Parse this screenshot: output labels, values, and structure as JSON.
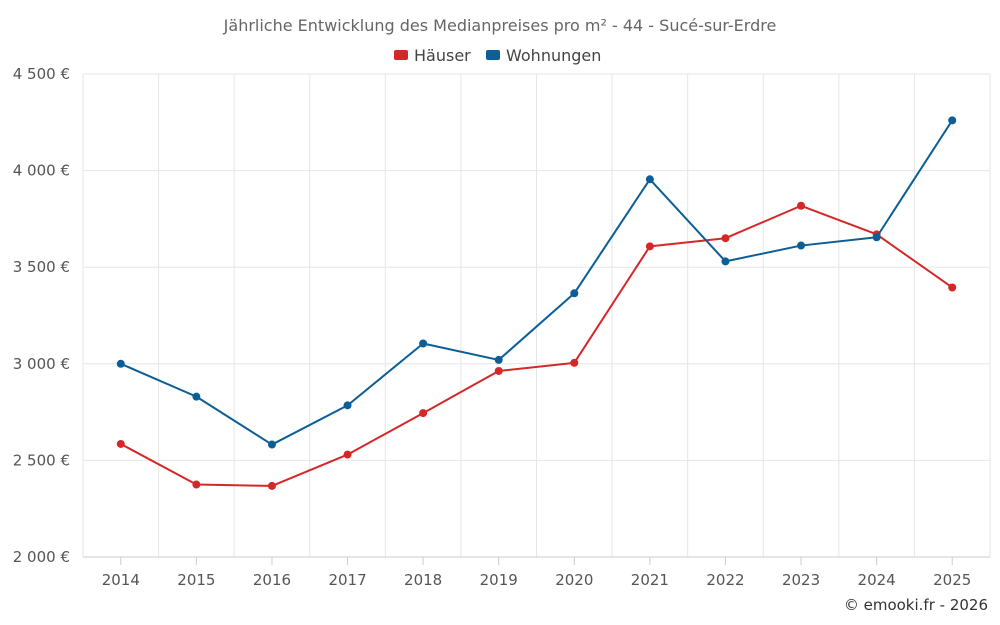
{
  "chart_data": {
    "type": "line",
    "title": "Jährliche Entwicklung des Medianpreises pro m² - 44 - Sucé-sur-Erdre",
    "categories": [
      "2014",
      "2015",
      "2016",
      "2017",
      "2018",
      "2019",
      "2020",
      "2021",
      "2022",
      "2023",
      "2024",
      "2025"
    ],
    "series": [
      {
        "name": "Häuser",
        "color": "#d62728",
        "values": [
          2585,
          2375,
          2368,
          2530,
          2745,
          2963,
          3005,
          3608,
          3650,
          3818,
          3670,
          3395
        ]
      },
      {
        "name": "Wohnungen",
        "color": "#0b5e96",
        "values": [
          3000,
          2830,
          2582,
          2785,
          3105,
          3020,
          3365,
          3955,
          3530,
          3612,
          3655,
          4260
        ]
      }
    ],
    "ylim": [
      2000,
      4500
    ],
    "yticks": [
      2000,
      2500,
      3000,
      3500,
      4000,
      4500
    ],
    "ytick_labels": [
      "2 000 €",
      "2 500 €",
      "3 000 €",
      "3 500 €",
      "4 000 €",
      "4 500 €"
    ],
    "xlabel": "",
    "ylabel": "",
    "legend_position": "top-center",
    "grid": true
  },
  "credit": "© emooki.fr - 2026"
}
